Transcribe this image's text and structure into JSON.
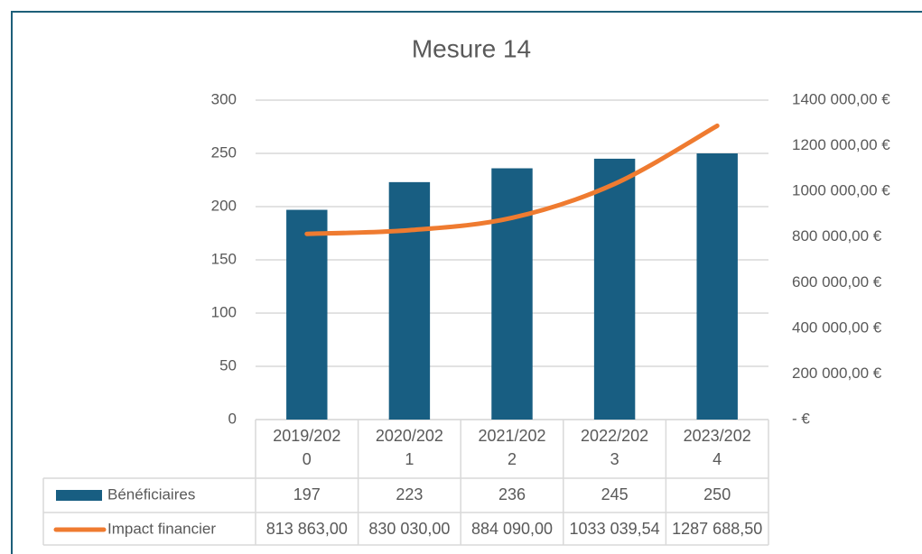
{
  "chart_data": {
    "type": "combo",
    "title": "Mesure 14",
    "categories": [
      "2019/2020",
      "2020/2021",
      "2021/2022",
      "2022/2023",
      "2023/2024"
    ],
    "series": [
      {
        "name": "Bénéficiaires",
        "type": "bar",
        "color": "#185e82",
        "values": [
          197,
          223,
          236,
          245,
          250
        ]
      },
      {
        "name": "Impact financier",
        "type": "line",
        "axis": "y2",
        "color": "#ef7b30",
        "values": [
          813863,
          830030,
          884090,
          1033039.54,
          1287688.5
        ],
        "value_labels": [
          "813 863,00",
          "830 030,00",
          "884 090,00",
          "1033 039,54",
          "1287 688,50"
        ]
      }
    ],
    "ylim": [
      0,
      300
    ],
    "yticks": [
      0,
      50,
      100,
      150,
      200,
      250,
      300
    ],
    "y2lim": [
      0,
      1400000
    ],
    "y2ticks": [
      {
        "value": 0,
        "label": "-  €"
      },
      {
        "value": 200000,
        "label": "200 000,00 €"
      },
      {
        "value": 400000,
        "label": "400 000,00 €"
      },
      {
        "value": 600000,
        "label": "600 000,00 €"
      },
      {
        "value": 800000,
        "label": "800 000,00 €"
      },
      {
        "value": 1000000,
        "label": "1000 000,00 €"
      },
      {
        "value": 1200000,
        "label": "1200 000,00 €"
      },
      {
        "value": 1400000,
        "label": "1400 000,00 €"
      }
    ],
    "grid": true
  }
}
